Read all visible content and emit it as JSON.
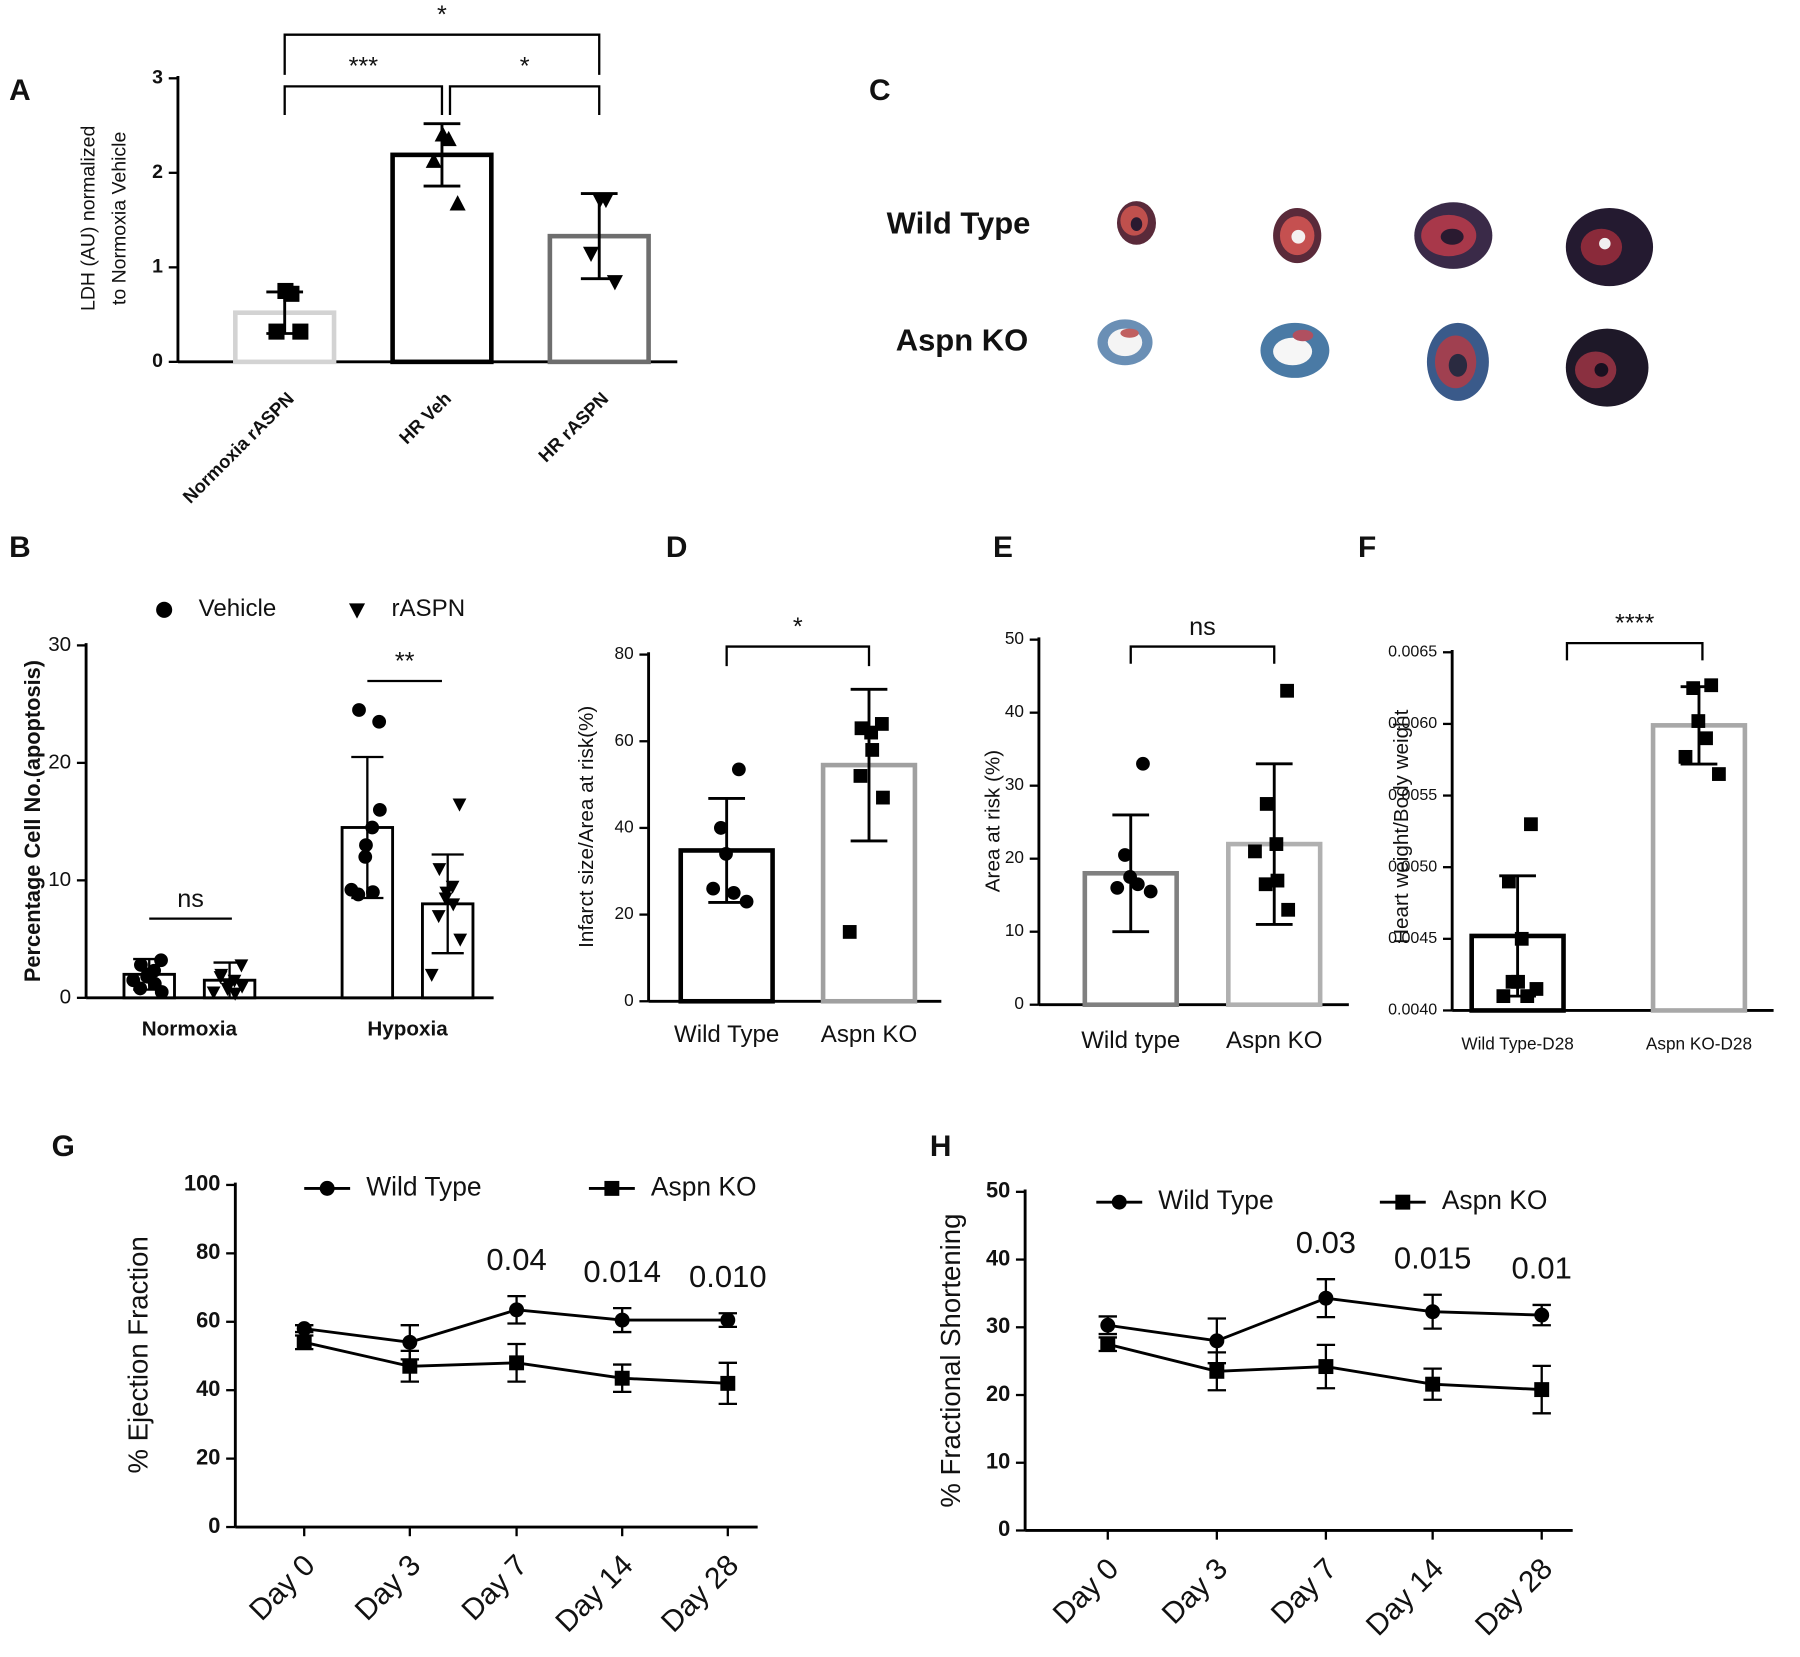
{
  "chart_data": [
    {
      "panel": "A",
      "type": "bar",
      "y_label": [
        "LDH (AU) normalized",
        "to Normoxia Vehicle"
      ],
      "categories": [
        "Normoxia rASPN",
        "HR Veh",
        "HR rASPN"
      ],
      "values": [
        0.52,
        2.19,
        1.33
      ],
      "errors": [
        0.22,
        0.33,
        0.45
      ],
      "colors": [
        "#d3d3d3",
        "#000000",
        "#6e6e6e"
      ],
      "markers": [
        "square",
        "triangle",
        "triangle-down"
      ],
      "points": [
        [
          0.72,
          0.75,
          0.32,
          0.32
        ],
        [
          2.35,
          2.4,
          2.12,
          1.67
        ],
        [
          1.72,
          1.72,
          1.15,
          0.85
        ]
      ],
      "ylim": [
        0,
        3
      ],
      "yticks": [
        0,
        1,
        2,
        3
      ],
      "significance": [
        "*",
        "***",
        "*"
      ]
    },
    {
      "panel": "B",
      "type": "bar",
      "y_label": "Percentage Cell No.(apoptosis)",
      "categories": [
        "Normoxia",
        "Hypoxia"
      ],
      "series": [
        {
          "name": "Vehicle",
          "color": "#000000",
          "marker": "circle",
          "values": [
            2.0,
            14.5
          ],
          "errors": [
            1.3,
            6.0
          ],
          "points": [
            [
              3.2,
              2.8,
              2.3,
              2.0,
              1.8,
              1.2,
              0.8,
              0.5,
              1.5
            ],
            [
              23.5,
              24.5,
              14.5,
              13.0,
              12.0,
              9.0,
              8.8,
              16.0,
              9.2
            ]
          ]
        },
        {
          "name": "rASPN",
          "color": "#000000",
          "marker": "triangle-down",
          "values": [
            1.5,
            8.0
          ],
          "errors": [
            1.5,
            4.2
          ],
          "points": [
            [
              2.8,
              2.0,
              1.5,
              1.2,
              0.8,
              0.4,
              1.8,
              1.0,
              0.5
            ],
            [
              16.5,
              11.0,
              9.5,
              9.0,
              8.5,
              8.0,
              7.0,
              5.0,
              2.0
            ]
          ]
        }
      ],
      "ylim": [
        0,
        30
      ],
      "yticks": [
        0,
        10,
        20,
        30
      ],
      "significance": [
        "ns",
        "**"
      ]
    },
    {
      "panel": "D",
      "type": "bar",
      "y_label": "Infarct size/Area at risk(%)",
      "categories": [
        "Wild Type",
        "Aspn KO"
      ],
      "values": [
        34.8,
        54.5
      ],
      "errors": [
        12.0,
        17.5
      ],
      "colors": [
        "#000000",
        "#a0a0a0"
      ],
      "markers": [
        "circle",
        "square"
      ],
      "points": [
        [
          53.5,
          40.0,
          34.0,
          25.0,
          26.0,
          23.0
        ],
        [
          64.0,
          63.0,
          62.0,
          58.0,
          52.0,
          47.0,
          16.0
        ]
      ],
      "ylim": [
        0,
        80
      ],
      "yticks": [
        0,
        20,
        40,
        60,
        80
      ],
      "significance": [
        "*"
      ]
    },
    {
      "panel": "E",
      "type": "bar",
      "y_label": "Area at risk (%)",
      "categories": [
        "Wild type",
        "Aspn KO"
      ],
      "values": [
        18.0,
        22.0
      ],
      "errors": [
        8.0,
        11.0
      ],
      "colors": [
        "#808080",
        "#b0b0b0"
      ],
      "markers": [
        "circle",
        "square"
      ],
      "points": [
        [
          33.0,
          20.5,
          17.5,
          16.5,
          16.0,
          15.5
        ],
        [
          43.0,
          27.5,
          22.0,
          17.0,
          16.5,
          13.0,
          21.0
        ]
      ],
      "ylim": [
        0,
        50
      ],
      "yticks": [
        0,
        10,
        20,
        30,
        40,
        50
      ],
      "significance": [
        "ns"
      ]
    },
    {
      "panel": "F",
      "type": "bar",
      "y_label": "Heart weight/Body weight",
      "categories": [
        "Wild Type-D28",
        "Aspn KO-D28"
      ],
      "values": [
        0.00452,
        0.00599
      ],
      "errors": [
        0.00042,
        0.00027
      ],
      "colors": [
        "#000000",
        "#a8a8a8"
      ],
      "markers": [
        "square",
        "square"
      ],
      "points": [
        [
          0.0053,
          0.0049,
          0.0045,
          0.0042,
          0.0042,
          0.0041,
          0.0041,
          0.00415
        ],
        [
          0.00627,
          0.00625,
          0.00602,
          0.0059,
          0.00577,
          0.00565
        ]
      ],
      "ylim": [
        0.004,
        0.0065
      ],
      "yticks": [
        {
          "value": 0.004,
          "label": "0.0040"
        },
        0.0045,
        {
          "value": 0.005,
          "label": "0.0050"
        },
        0.0055,
        {
          "value": 0.006,
          "label": "0.0060"
        },
        0.0065
      ],
      "significance": [
        "****"
      ]
    },
    {
      "panel": "G",
      "type": "line",
      "y_label": "% Ejection  Fraction",
      "categories": [
        "Day 0",
        "Day 3",
        "Day 7",
        "Day 14",
        "Day 28"
      ],
      "series": [
        {
          "name": "Wild Type",
          "color": "#000000",
          "marker": "circle",
          "values": [
            58.0,
            54.0,
            63.5,
            60.5,
            60.5
          ],
          "errors": [
            1.0,
            5.0,
            4.0,
            3.5,
            2.0
          ]
        },
        {
          "name": "Aspn KO",
          "color": "#000000",
          "marker": "square",
          "values": [
            54.0,
            47.0,
            48.0,
            43.5,
            42.0
          ],
          "errors": [
            2.0,
            4.5,
            5.5,
            4.0,
            6.0
          ]
        }
      ],
      "p_values": [
        null,
        null,
        "0.04",
        "0.014",
        "0.010"
      ],
      "ylim": [
        0,
        100
      ],
      "yticks": [
        0,
        20,
        40,
        60,
        80,
        100
      ]
    },
    {
      "panel": "H",
      "type": "line",
      "y_label": "% Fractional Shortening",
      "categories": [
        "Day 0",
        "Day 3",
        "Day 7",
        "Day 14",
        "Day 28"
      ],
      "series": [
        {
          "name": "Wild Type",
          "color": "#000000",
          "marker": "circle",
          "values": [
            30.3,
            28.0,
            34.3,
            32.3,
            31.8
          ],
          "errors": [
            1.3,
            3.3,
            2.8,
            2.5,
            1.5
          ]
        },
        {
          "name": "Aspn KO",
          "color": "#000000",
          "marker": "square",
          "values": [
            27.5,
            23.5,
            24.2,
            21.6,
            20.8
          ],
          "errors": [
            1.0,
            2.8,
            3.2,
            2.3,
            3.5
          ]
        }
      ],
      "p_values": [
        null,
        null,
        "0.03",
        "0.015",
        "0.01"
      ],
      "ylim": [
        0,
        50
      ],
      "yticks": [
        0,
        10,
        20,
        30,
        40,
        50
      ]
    }
  ],
  "panel_c": {
    "panel": "C",
    "rows": [
      "Wild Type",
      "Aspn KO"
    ]
  }
}
